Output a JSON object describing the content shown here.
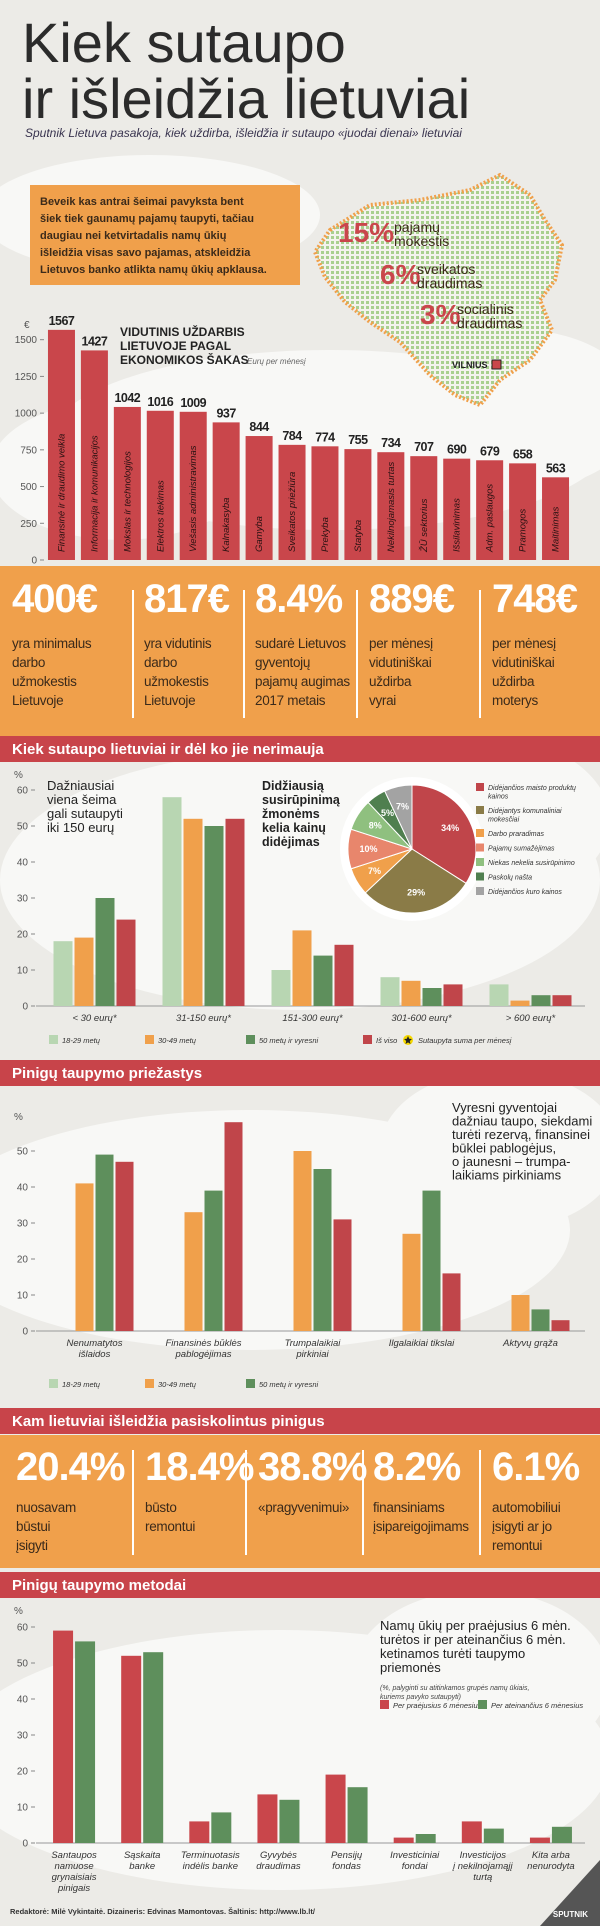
{
  "header": {
    "title_lines": [
      "Kiek sutaupo",
      "ir išleidžia lietuviai"
    ],
    "subtitle": "Sputnik Lietuva pasakoja, kiek uždirba, išleidžia ir sutaupo «juodai dienai» lietuviai"
  },
  "intro_lines": [
    "Beveik kas antrai šeimai pavyksta bent",
    "šiek tiek gaunamų pajamų taupyti, tačiau",
    "daugiau nei ketvirtadalis namų ūkių",
    "išleidžia visas savo pajamas, atskleidžia",
    "Lietuvos banko atlikta namų ūkių apklausa."
  ],
  "taxes": [
    {
      "percent": "15%",
      "lines": [
        "pajamų",
        "mokestis"
      ]
    },
    {
      "percent": "6%",
      "lines": [
        "sveikatos",
        "draudimas"
      ]
    },
    {
      "percent": "3%",
      "lines": [
        "socialinis",
        "draudimas"
      ]
    }
  ],
  "map_label": "VILNIUS",
  "stats1": [
    {
      "big": "400€",
      "lines": [
        "yra minimalus",
        "darbo",
        "užmokestis",
        "Lietuvoje"
      ]
    },
    {
      "big": "817€",
      "lines": [
        "yra vidutinis",
        "darbo",
        "užmokestis",
        "Lietuvoje"
      ]
    },
    {
      "big": "8.4%",
      "lines": [
        "sudarė Lietuvos",
        "gyventojų",
        "pajamų augimas",
        "2017 metais"
      ]
    },
    {
      "big": "889€",
      "lines": [
        "per mėnesį",
        "vidutiniškai",
        "uždirba",
        "vyrai"
      ]
    },
    {
      "big": "748€",
      "lines": [
        "per mėnesį",
        "vidutiniškai",
        "uždirba",
        "moterys"
      ]
    }
  ],
  "sections": [
    "Kiek sutaupo lietuviai ir dėl ko jie nerimauja",
    "Pinigų taupymo priežastys",
    "Kam lietuviai išleidžia pasiskolintus pinigus",
    "Pinigų taupymo metodai"
  ],
  "stats2": [
    {
      "big": "20.4%",
      "lines": [
        "nuosavam",
        "būstui",
        "įsigyti"
      ]
    },
    {
      "big": "18.4%",
      "lines": [
        "būsto",
        "remontui"
      ]
    },
    {
      "big": "38.8%",
      "lines": [
        "«pragyvenimui»"
      ]
    },
    {
      "big": "8.2%",
      "lines": [
        "finansiniams",
        "įsipareigojimams"
      ]
    },
    {
      "big": "6.1%",
      "lines": [
        "automobiliui",
        "įsigyti ar jo",
        "remontui"
      ]
    }
  ],
  "chart_data": [
    {
      "type": "bar",
      "title_lines": [
        "VIDUTINIS UŽDARBIS",
        "LIETUVOJE PAGAL",
        "EKONOMIKOS ŠAKAS"
      ],
      "subtitle": "Eurų per mėnesį",
      "y_label": "€",
      "categories": [
        "Finansinė ir draudimo veikla",
        "Informacija ir komunikacijos",
        "Mokslas ir technologijos",
        "Elektros tiekimas",
        "Viešasis administravimas",
        "Kalnakasyba",
        "Gamyba",
        "Sveikatos priežiūra",
        "Prekyba",
        "Statyba",
        "Nekilnojamasis turtas",
        "ŽŪ sektorius",
        "Išsilavinimas",
        "Adm. paslaugos",
        "Pramogos",
        "Maitinimas"
      ],
      "values": [
        1567,
        1427,
        1042,
        1016,
        1009,
        937,
        844,
        784,
        774,
        755,
        734,
        707,
        690,
        679,
        658,
        563
      ],
      "color": "#c9464b",
      "ylim": [
        0,
        1600
      ],
      "yticks": [
        0,
        250,
        500,
        750,
        1000,
        1250,
        1500
      ],
      "grid": false
    },
    {
      "type": "bar",
      "y_label": "%",
      "categories": [
        [
          "< 30 eurų*"
        ],
        [
          "31-150 eurų*"
        ],
        [
          "151-300 eurų*"
        ],
        [
          "301-600 eurų*"
        ],
        [
          "> 600 eurų*"
        ]
      ],
      "series": [
        {
          "name": "18-29 metų",
          "color": "#b8d6b2",
          "values": [
            18,
            58,
            10,
            8,
            6
          ]
        },
        {
          "name": "30-49 metų",
          "color": "#f0a04b",
          "values": [
            19,
            52,
            21,
            7,
            1.5
          ]
        },
        {
          "name": "50 metų ir vyresni",
          "color": "#5e8f5c",
          "values": [
            30,
            50,
            14,
            5,
            3
          ]
        },
        {
          "name": "Iš viso",
          "color": "#c0454a",
          "values": [
            24,
            52,
            17,
            6,
            3
          ]
        }
      ],
      "legend_note": "Sutaupyta suma per mėnesį",
      "annotation_lines": [
        "Dažniausiai",
        "viena šeima",
        "gali sutaupyti",
        "iki 150 eurų"
      ],
      "ylim": [
        0,
        60
      ],
      "yticks": [
        0,
        10,
        20,
        30,
        40,
        50,
        60
      ],
      "grid": false
    },
    {
      "type": "pie",
      "title_lines": [
        "Didžiausią",
        "susirūpinimą",
        "žmonėms",
        "kelia kainų",
        "didėjimas"
      ],
      "labels": [
        [
          "Didėjančios maisto produktų",
          "kainos"
        ],
        [
          "Didėjantys komunaliniai",
          "mokesčiai"
        ],
        [
          "Darbo praradimas"
        ],
        [
          "Pajamų sumažėjimas"
        ],
        [
          "Niekas nekelia susirūpinimo"
        ],
        [
          "Paskolų našta"
        ],
        [
          "Didėjančios kuro kainos"
        ]
      ],
      "values": [
        34,
        29,
        7,
        10,
        8,
        5,
        7
      ],
      "value_labels": [
        "34%",
        "29%",
        "7%",
        "10%",
        "8%",
        "5%",
        "7%"
      ],
      "colors": [
        "#c0454a",
        "#8a7b47",
        "#f0a04b",
        "#e8866c",
        "#8fc07f",
        "#4f7f4f",
        "#a3a3a3"
      ]
    },
    {
      "type": "bar",
      "y_label": "%",
      "categories": [
        [
          "Nenumatytos",
          "išlaidos"
        ],
        [
          "Finansinės būklės",
          "pablogėjimas"
        ],
        [
          "Trumpalaikiai",
          "pirkiniai"
        ],
        [
          "Ilgalaikiai tikslai"
        ],
        [
          "Aktyvų grąža"
        ]
      ],
      "series": [
        {
          "name": "18-29 metų",
          "color": "#b8d6b2",
          "values": [
            null,
            null,
            null,
            null,
            null
          ]
        },
        {
          "name": "30-49 metų",
          "color": "#f0a04b",
          "values": [
            41,
            33,
            50,
            27,
            10
          ]
        },
        {
          "name": "50 metų ir vyresni",
          "color": "#5e8f5c",
          "values": [
            49,
            39,
            45,
            39,
            6
          ]
        },
        {
          "color": "#c0454a",
          "values": [
            47,
            58,
            31,
            16,
            3
          ]
        }
      ],
      "annotation_lines": [
        "Vyresni gyventojai",
        "dažniau taupo, siekdami",
        "turėti rezervą, finansinei",
        "būklei pablogėjus,",
        "o jaunesni – trumpa-",
        "laikiams pirkiniams"
      ],
      "ylim": [
        0,
        60
      ],
      "yticks": [
        0,
        10,
        20,
        30,
        40,
        50
      ],
      "grid": false
    },
    {
      "type": "bar",
      "y_label": "%",
      "categories": [
        [
          "Santaupos",
          "namuose",
          "grynaisiais",
          "pinigais"
        ],
        [
          "Sąskaita",
          "banke"
        ],
        [
          "Terminuotasis",
          "indėlis banke"
        ],
        [
          "Gyvybės",
          "draudimas"
        ],
        [
          "Pensijų",
          "fondas"
        ],
        [
          "Investiciniai",
          "fondai"
        ],
        [
          "Investicijos",
          "į nekilnojamąjį",
          "turtą"
        ],
        [
          "Kita arba",
          "nenurodyta"
        ]
      ],
      "series": [
        {
          "name": "Per praėjusius 6 mėnesius",
          "color": "#c9464b",
          "values": [
            59,
            52,
            6,
            13.5,
            19,
            1.5,
            6,
            1.5
          ]
        },
        {
          "name": "Per ateinančius 6 mėnesius",
          "color": "#5e8f5c",
          "values": [
            56,
            53,
            8.5,
            12,
            15.5,
            2.5,
            4,
            4.5
          ]
        }
      ],
      "annotation_lines": [
        "Namų ūkių per praėjusius 6 mėn.",
        "turėtos ir per ateinančius 6 mėn.",
        "ketinamos turėti taupymo",
        "priemonės"
      ],
      "note_lines": [
        "(%, palyginti su atitinkamos grupės namų ūkiais,",
        "kuriems pavyko sutaupyti)"
      ],
      "ylim": [
        0,
        60
      ],
      "yticks": [
        0,
        10,
        20,
        30,
        40,
        50,
        60
      ],
      "grid": false
    }
  ],
  "footer": {
    "credits": "Redaktorė: Milė Vykintaitė.   Dizaineris: Edvinas Mamontovas.   Šaltinis: http://www.lb.lt/",
    "logo": "SPUTNIK"
  }
}
